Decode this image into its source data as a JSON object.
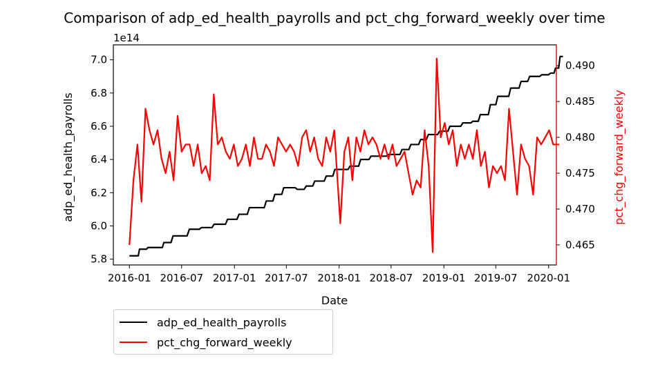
{
  "chart_data": {
    "type": "line",
    "title": "Comparison of adp_ed_health_payrolls and pct_chg_forward_weekly over time",
    "xlabel": "Date",
    "ylabel_left": "adp_ed_health_payrolls",
    "ylabel_right": "pct_chg_forward_weekly",
    "left_offset_text": "1e14",
    "x_ticks": [
      "2016-01",
      "2016-07",
      "2017-01",
      "2017-07",
      "2018-01",
      "2018-07",
      "2019-01",
      "2019-07",
      "2020-01"
    ],
    "y_left_ticks": [
      "5.8",
      "6.0",
      "6.2",
      "6.4",
      "6.6",
      "6.8",
      "7.0"
    ],
    "y_right_ticks": [
      "0.465",
      "0.470",
      "0.475",
      "0.480",
      "0.485",
      "0.490"
    ],
    "xlim": [
      "2015-11-06",
      "2020-01-28"
    ],
    "ylim_left": [
      5.765,
      7.09
    ],
    "ylim_right": [
      0.4622,
      0.4929
    ],
    "grid": false,
    "legend_position": "below-left",
    "colors": {
      "left_series": "#000000",
      "right_series": "#ff0000"
    },
    "series": [
      {
        "name": "adp_ed_health_payrolls",
        "axis": "left",
        "color": "#000000",
        "points": [
          [
            "2016-01-01",
            5.82
          ],
          [
            "2016-02-01",
            5.82
          ],
          [
            "2016-02-05",
            5.86
          ],
          [
            "2016-03-01",
            5.86
          ],
          [
            "2016-03-05",
            5.87
          ],
          [
            "2016-04-25",
            5.87
          ],
          [
            "2016-04-30",
            5.9
          ],
          [
            "2016-05-25",
            5.9
          ],
          [
            "2016-06-01",
            5.94
          ],
          [
            "2016-07-20",
            5.94
          ],
          [
            "2016-07-28",
            5.98
          ],
          [
            "2016-09-01",
            5.98
          ],
          [
            "2016-09-08",
            5.99
          ],
          [
            "2016-10-15",
            5.99
          ],
          [
            "2016-10-22",
            6.01
          ],
          [
            "2016-12-01",
            6.01
          ],
          [
            "2016-12-08",
            6.04
          ],
          [
            "2017-01-10",
            6.04
          ],
          [
            "2017-01-17",
            6.07
          ],
          [
            "2017-02-15",
            6.07
          ],
          [
            "2017-02-22",
            6.11
          ],
          [
            "2017-04-15",
            6.11
          ],
          [
            "2017-04-22",
            6.15
          ],
          [
            "2017-05-15",
            6.15
          ],
          [
            "2017-05-22",
            6.19
          ],
          [
            "2017-06-15",
            6.19
          ],
          [
            "2017-06-22",
            6.23
          ],
          [
            "2017-08-01",
            6.23
          ],
          [
            "2017-08-08",
            6.22
          ],
          [
            "2017-09-01",
            6.22
          ],
          [
            "2017-09-08",
            6.24
          ],
          [
            "2017-10-01",
            6.24
          ],
          [
            "2017-10-08",
            6.27
          ],
          [
            "2017-11-10",
            6.27
          ],
          [
            "2017-11-17",
            6.3
          ],
          [
            "2017-12-10",
            6.3
          ],
          [
            "2017-12-17",
            6.34
          ],
          [
            "2018-02-01",
            6.34
          ],
          [
            "2018-02-08",
            6.36
          ],
          [
            "2018-03-10",
            6.36
          ],
          [
            "2018-03-17",
            6.4
          ],
          [
            "2018-04-15",
            6.4
          ],
          [
            "2018-04-22",
            6.42
          ],
          [
            "2018-06-15",
            6.42
          ],
          [
            "2018-06-22",
            6.43
          ],
          [
            "2018-08-01",
            6.43
          ],
          [
            "2018-08-08",
            6.46
          ],
          [
            "2018-09-01",
            6.46
          ],
          [
            "2018-09-08",
            6.49
          ],
          [
            "2018-10-05",
            6.49
          ],
          [
            "2018-10-12",
            6.52
          ],
          [
            "2018-11-01",
            6.52
          ],
          [
            "2018-11-08",
            6.55
          ],
          [
            "2018-12-10",
            6.55
          ],
          [
            "2018-12-17",
            6.57
          ],
          [
            "2019-01-15",
            6.57
          ],
          [
            "2019-01-22",
            6.6
          ],
          [
            "2019-03-01",
            6.6
          ],
          [
            "2019-03-08",
            6.62
          ],
          [
            "2019-04-05",
            6.62
          ],
          [
            "2019-04-12",
            6.63
          ],
          [
            "2019-05-01",
            6.63
          ],
          [
            "2019-05-08",
            6.67
          ],
          [
            "2019-06-05",
            6.67
          ],
          [
            "2019-06-12",
            6.73
          ],
          [
            "2019-07-01",
            6.73
          ],
          [
            "2019-07-08",
            6.78
          ],
          [
            "2019-08-15",
            6.78
          ],
          [
            "2019-08-22",
            6.83
          ],
          [
            "2019-09-20",
            6.83
          ],
          [
            "2019-09-27",
            6.87
          ],
          [
            "2019-10-20",
            6.87
          ],
          [
            "2019-10-27",
            6.9
          ],
          [
            "2019-12-01",
            6.9
          ],
          [
            "2019-12-08",
            6.91
          ],
          [
            "2020-01-01",
            6.91
          ],
          [
            "2020-01-08",
            6.92
          ],
          [
            "2020-01-20",
            6.92
          ],
          [
            "2020-01-25",
            6.95
          ],
          [
            "2020-02-05",
            6.95
          ],
          [
            "2020-02-10",
            7.02
          ],
          [
            "2020-02-20",
            7.02
          ]
        ]
      },
      {
        "name": "pct_chg_forward_weekly",
        "axis": "right",
        "color": "#ff0000",
        "points": [
          [
            "2016-01-01",
            0.465
          ],
          [
            "2016-01-15",
            0.474
          ],
          [
            "2016-01-29",
            0.479
          ],
          [
            "2016-02-12",
            0.471
          ],
          [
            "2016-02-26",
            0.484
          ],
          [
            "2016-03-11",
            0.481
          ],
          [
            "2016-03-25",
            0.479
          ],
          [
            "2016-04-08",
            0.481
          ],
          [
            "2016-04-22",
            0.477
          ],
          [
            "2016-05-06",
            0.475
          ],
          [
            "2016-05-20",
            0.478
          ],
          [
            "2016-06-03",
            0.474
          ],
          [
            "2016-06-17",
            0.483
          ],
          [
            "2016-07-01",
            0.478
          ],
          [
            "2016-07-15",
            0.479
          ],
          [
            "2016-07-29",
            0.479
          ],
          [
            "2016-08-12",
            0.476
          ],
          [
            "2016-08-26",
            0.479
          ],
          [
            "2016-09-09",
            0.475
          ],
          [
            "2016-09-23",
            0.476
          ],
          [
            "2016-10-07",
            0.474
          ],
          [
            "2016-10-21",
            0.486
          ],
          [
            "2016-11-04",
            0.479
          ],
          [
            "2016-11-18",
            0.48
          ],
          [
            "2016-12-02",
            0.478
          ],
          [
            "2016-12-16",
            0.477
          ],
          [
            "2016-12-30",
            0.479
          ],
          [
            "2017-01-13",
            0.476
          ],
          [
            "2017-01-27",
            0.477
          ],
          [
            "2017-02-10",
            0.479
          ],
          [
            "2017-02-24",
            0.476
          ],
          [
            "2017-03-10",
            0.48
          ],
          [
            "2017-03-24",
            0.477
          ],
          [
            "2017-04-07",
            0.477
          ],
          [
            "2017-04-21",
            0.479
          ],
          [
            "2017-05-05",
            0.478
          ],
          [
            "2017-05-19",
            0.476
          ],
          [
            "2017-06-02",
            0.48
          ],
          [
            "2017-06-16",
            0.479
          ],
          [
            "2017-06-30",
            0.478
          ],
          [
            "2017-07-14",
            0.479
          ],
          [
            "2017-07-28",
            0.478
          ],
          [
            "2017-08-11",
            0.476
          ],
          [
            "2017-08-25",
            0.48
          ],
          [
            "2017-09-08",
            0.481
          ],
          [
            "2017-09-22",
            0.478
          ],
          [
            "2017-10-06",
            0.48
          ],
          [
            "2017-10-20",
            0.477
          ],
          [
            "2017-11-03",
            0.476
          ],
          [
            "2017-11-17",
            0.48
          ],
          [
            "2017-12-01",
            0.478
          ],
          [
            "2017-12-15",
            0.481
          ],
          [
            "2018-01-05",
            0.468
          ],
          [
            "2018-01-19",
            0.478
          ],
          [
            "2018-02-02",
            0.48
          ],
          [
            "2018-02-16",
            0.474
          ],
          [
            "2018-03-02",
            0.48
          ],
          [
            "2018-03-16",
            0.478
          ],
          [
            "2018-03-30",
            0.481
          ],
          [
            "2018-04-13",
            0.479
          ],
          [
            "2018-04-27",
            0.48
          ],
          [
            "2018-05-11",
            0.479
          ],
          [
            "2018-05-25",
            0.477
          ],
          [
            "2018-06-08",
            0.479
          ],
          [
            "2018-06-22",
            0.477
          ],
          [
            "2018-07-06",
            0.479
          ],
          [
            "2018-07-20",
            0.476
          ],
          [
            "2018-08-03",
            0.477
          ],
          [
            "2018-08-17",
            0.478
          ],
          [
            "2018-08-31",
            0.475
          ],
          [
            "2018-09-14",
            0.472
          ],
          [
            "2018-09-28",
            0.474
          ],
          [
            "2018-10-12",
            0.473
          ],
          [
            "2018-10-26",
            0.481
          ],
          [
            "2018-11-09",
            0.476
          ],
          [
            "2018-11-23",
            0.464
          ],
          [
            "2018-12-07",
            0.491
          ],
          [
            "2018-12-21",
            0.48
          ],
          [
            "2019-01-04",
            0.482
          ],
          [
            "2019-01-18",
            0.479
          ],
          [
            "2019-02-01",
            0.481
          ],
          [
            "2019-02-15",
            0.476
          ],
          [
            "2019-03-01",
            0.479
          ],
          [
            "2019-03-15",
            0.477
          ],
          [
            "2019-03-29",
            0.479
          ],
          [
            "2019-04-12",
            0.477
          ],
          [
            "2019-04-26",
            0.481
          ],
          [
            "2019-05-10",
            0.476
          ],
          [
            "2019-05-24",
            0.478
          ],
          [
            "2019-06-07",
            0.473
          ],
          [
            "2019-06-21",
            0.476
          ],
          [
            "2019-07-05",
            0.475
          ],
          [
            "2019-07-19",
            0.476
          ],
          [
            "2019-08-02",
            0.474
          ],
          [
            "2019-08-16",
            0.484
          ],
          [
            "2019-08-30",
            0.478
          ],
          [
            "2019-09-13",
            0.472
          ],
          [
            "2019-09-27",
            0.479
          ],
          [
            "2019-10-11",
            0.477
          ],
          [
            "2019-10-25",
            0.476
          ],
          [
            "2019-11-08",
            0.472
          ],
          [
            "2019-11-22",
            0.48
          ],
          [
            "2019-12-06",
            0.479
          ],
          [
            "2019-12-20",
            0.48
          ],
          [
            "2020-01-03",
            0.481
          ],
          [
            "2020-01-17",
            0.479
          ],
          [
            "2020-02-07",
            0.479
          ]
        ]
      }
    ]
  }
}
